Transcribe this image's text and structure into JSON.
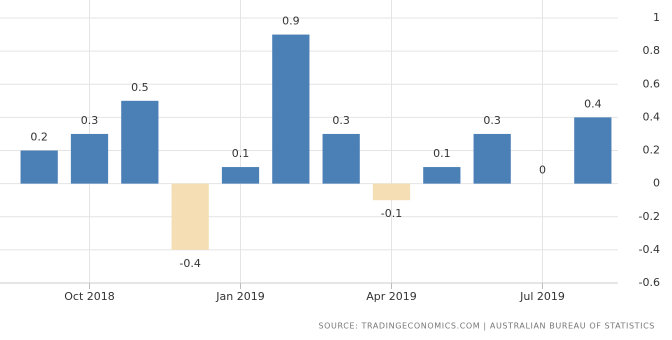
{
  "chart_data": {
    "type": "bar",
    "categories": [
      null,
      "Oct 2018",
      null,
      null,
      "Jan 2019",
      null,
      null,
      "Apr 2019",
      null,
      null,
      "Jul 2019",
      null
    ],
    "values": [
      0.2,
      0.3,
      0.5,
      -0.4,
      0.1,
      0.9,
      0.3,
      -0.1,
      0.1,
      0.3,
      0,
      0.4
    ],
    "color": "#4a80b6",
    "negative_color": "#f5deb3",
    "ylim": [
      -0.6,
      1
    ],
    "yticks": [
      -0.6,
      -0.4,
      -0.2,
      0,
      0.2,
      0.4,
      0.6,
      0.8,
      1
    ],
    "grid": true,
    "source": "SOURCE: TRADINGECONOMICS.COM | AUSTRALIAN BUREAU OF STATISTICS"
  }
}
